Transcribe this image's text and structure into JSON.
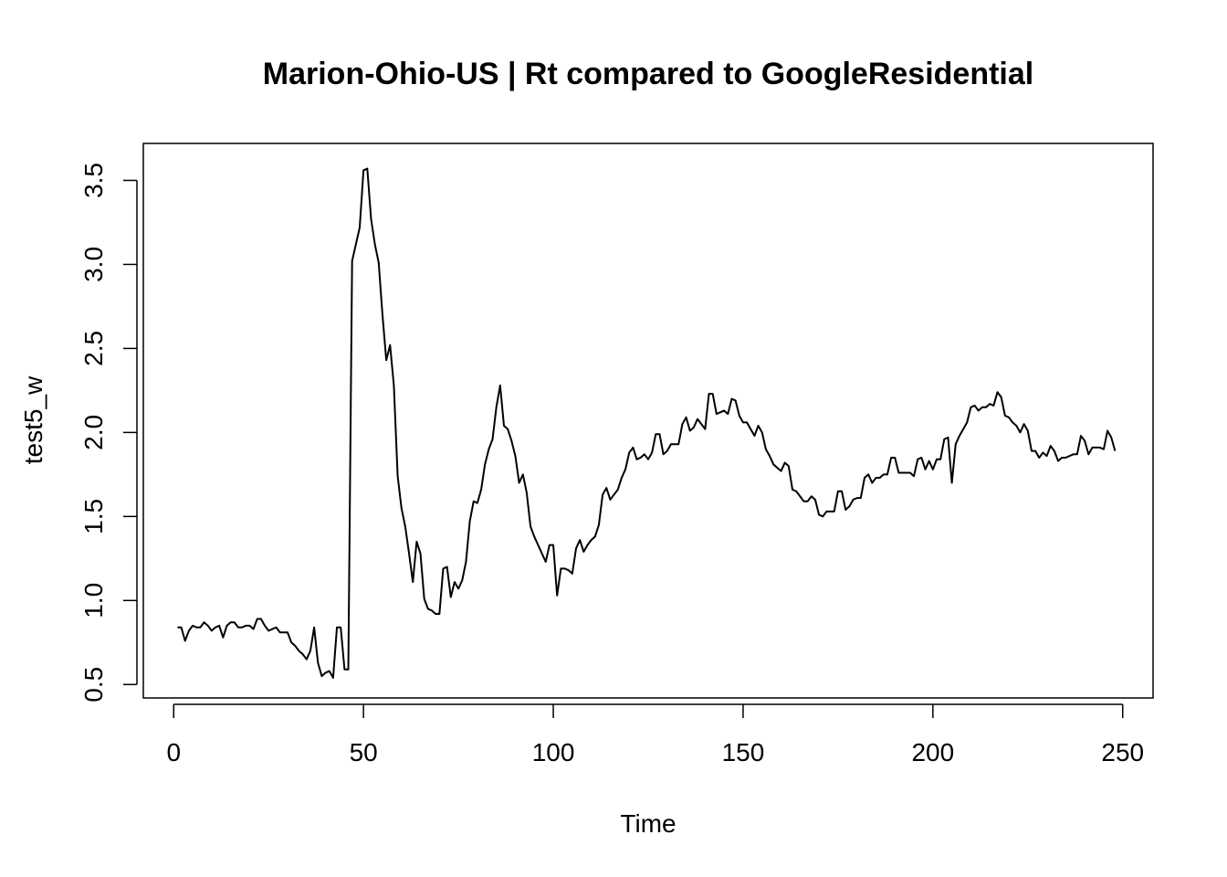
{
  "chart_data": {
    "type": "line",
    "title": "Marion-Ohio-US | Rt compared to GoogleResidential",
    "xlabel": "Time",
    "ylabel": "test5_w",
    "xlim": [
      -8,
      258
    ],
    "ylim": [
      0.42,
      3.72
    ],
    "xticks": [
      0,
      50,
      100,
      150,
      200,
      250
    ],
    "yticks": [
      0.5,
      1.0,
      1.5,
      2.0,
      2.5,
      3.0,
      3.5
    ],
    "xtick_labels": [
      "0",
      "50",
      "100",
      "150",
      "200",
      "250"
    ],
    "ytick_labels": [
      "0.5",
      "1.0",
      "1.5",
      "2.0",
      "2.5",
      "3.0",
      "3.5"
    ],
    "grid": false,
    "line_color": "#000000",
    "series": [
      {
        "x": [
          1,
          2,
          3,
          4,
          5,
          6,
          7,
          8,
          9,
          10,
          11,
          12,
          13,
          14,
          15,
          16,
          17,
          18,
          19,
          20,
          21,
          22,
          23,
          24,
          25,
          26,
          27,
          28,
          29,
          30,
          31,
          32,
          33,
          34,
          35,
          36,
          37,
          38,
          39,
          40,
          41,
          42,
          43,
          44,
          45,
          46,
          47,
          48,
          49,
          50,
          51,
          52,
          53,
          54,
          55,
          56,
          57,
          58,
          59,
          60,
          61,
          62,
          63,
          64,
          65,
          66,
          67,
          68,
          69,
          70,
          71,
          72,
          73,
          74,
          75,
          76,
          77,
          78,
          79,
          80,
          81,
          82,
          83,
          84,
          85,
          86,
          87,
          88,
          89,
          90,
          91,
          92,
          93,
          94,
          95,
          96,
          97,
          98,
          99,
          100,
          101,
          102,
          103,
          104,
          105,
          106,
          107,
          108,
          109,
          110,
          111,
          112,
          113,
          114,
          115,
          116,
          117,
          118,
          119,
          120,
          121,
          122,
          123,
          124,
          125,
          126,
          127,
          128,
          129,
          130,
          131,
          132,
          133,
          134,
          135,
          136,
          137,
          138,
          139,
          140,
          141,
          142,
          143,
          144,
          145,
          146,
          147,
          148,
          149,
          150,
          151,
          152,
          153,
          154,
          155,
          156,
          157,
          158,
          159,
          160,
          161,
          162,
          163,
          164,
          165,
          166,
          167,
          168,
          169,
          170,
          171,
          172,
          173,
          174,
          175,
          176,
          177,
          178,
          179,
          180,
          181,
          182,
          183,
          184,
          185,
          186,
          187,
          188,
          189,
          190,
          191,
          192,
          193,
          194,
          195,
          196,
          197,
          198,
          199,
          200,
          201,
          202,
          203,
          204,
          205,
          206,
          207,
          208,
          209,
          210,
          211,
          212,
          213,
          214,
          215,
          216,
          217,
          218,
          219,
          220,
          221,
          222,
          223,
          224,
          225,
          226,
          227,
          228,
          229,
          230,
          231,
          232,
          233,
          234,
          235,
          236,
          237,
          238,
          239,
          240,
          241,
          242,
          243,
          244,
          245,
          246,
          247,
          248
        ],
        "values": [
          0.84,
          0.84,
          0.76,
          0.82,
          0.85,
          0.84,
          0.84,
          0.87,
          0.85,
          0.82,
          0.84,
          0.85,
          0.78,
          0.85,
          0.87,
          0.87,
          0.84,
          0.84,
          0.85,
          0.85,
          0.83,
          0.89,
          0.89,
          0.85,
          0.82,
          0.83,
          0.84,
          0.81,
          0.81,
          0.81,
          0.75,
          0.73,
          0.7,
          0.68,
          0.65,
          0.7,
          0.84,
          0.63,
          0.55,
          0.57,
          0.58,
          0.54,
          0.84,
          0.84,
          0.59,
          0.59,
          3.02,
          3.12,
          3.22,
          3.56,
          3.57,
          3.27,
          3.12,
          3.01,
          2.7,
          2.43,
          2.52,
          2.28,
          1.74,
          1.55,
          1.44,
          1.28,
          1.11,
          1.35,
          1.28,
          1.01,
          0.95,
          0.94,
          0.92,
          0.92,
          1.19,
          1.2,
          1.02,
          1.11,
          1.07,
          1.12,
          1.23,
          1.47,
          1.59,
          1.58,
          1.66,
          1.81,
          1.9,
          1.96,
          2.15,
          2.28,
          2.04,
          2.02,
          1.95,
          1.86,
          1.7,
          1.75,
          1.64,
          1.44,
          1.38,
          1.33,
          1.28,
          1.23,
          1.33,
          1.33,
          1.03,
          1.19,
          1.19,
          1.18,
          1.16,
          1.31,
          1.36,
          1.29,
          1.33,
          1.36,
          1.38,
          1.45,
          1.63,
          1.67,
          1.6,
          1.63,
          1.66,
          1.73,
          1.78,
          1.88,
          1.91,
          1.84,
          1.85,
          1.87,
          1.84,
          1.88,
          1.99,
          1.99,
          1.87,
          1.89,
          1.93,
          1.93,
          1.93,
          2.05,
          2.09,
          2.01,
          2.03,
          2.08,
          2.05,
          2.02,
          2.23,
          2.23,
          2.11,
          2.12,
          2.13,
          2.11,
          2.2,
          2.19,
          2.1,
          2.06,
          2.06,
          2.02,
          1.98,
          2.04,
          2.0,
          1.9,
          1.86,
          1.81,
          1.79,
          1.77,
          1.82,
          1.8,
          1.66,
          1.65,
          1.62,
          1.59,
          1.59,
          1.62,
          1.6,
          1.51,
          1.5,
          1.53,
          1.53,
          1.53,
          1.65,
          1.65,
          1.54,
          1.56,
          1.6,
          1.61,
          1.61,
          1.73,
          1.75,
          1.7,
          1.73,
          1.73,
          1.75,
          1.75,
          1.85,
          1.85,
          1.76,
          1.76,
          1.76,
          1.76,
          1.74,
          1.84,
          1.85,
          1.78,
          1.83,
          1.78,
          1.84,
          1.84,
          1.96,
          1.97,
          1.7,
          1.93,
          1.98,
          2.02,
          2.06,
          2.15,
          2.16,
          2.13,
          2.15,
          2.15,
          2.17,
          2.16,
          2.24,
          2.21,
          2.1,
          2.09,
          2.06,
          2.04,
          2.0,
          2.05,
          2.01,
          1.89,
          1.89,
          1.85,
          1.88,
          1.86,
          1.92,
          1.89,
          1.83,
          1.85,
          1.85,
          1.86,
          1.87,
          1.87,
          1.98,
          1.95,
          1.87,
          1.91,
          1.91,
          1.91,
          1.9,
          2.01,
          1.97,
          1.89
        ]
      }
    ]
  }
}
